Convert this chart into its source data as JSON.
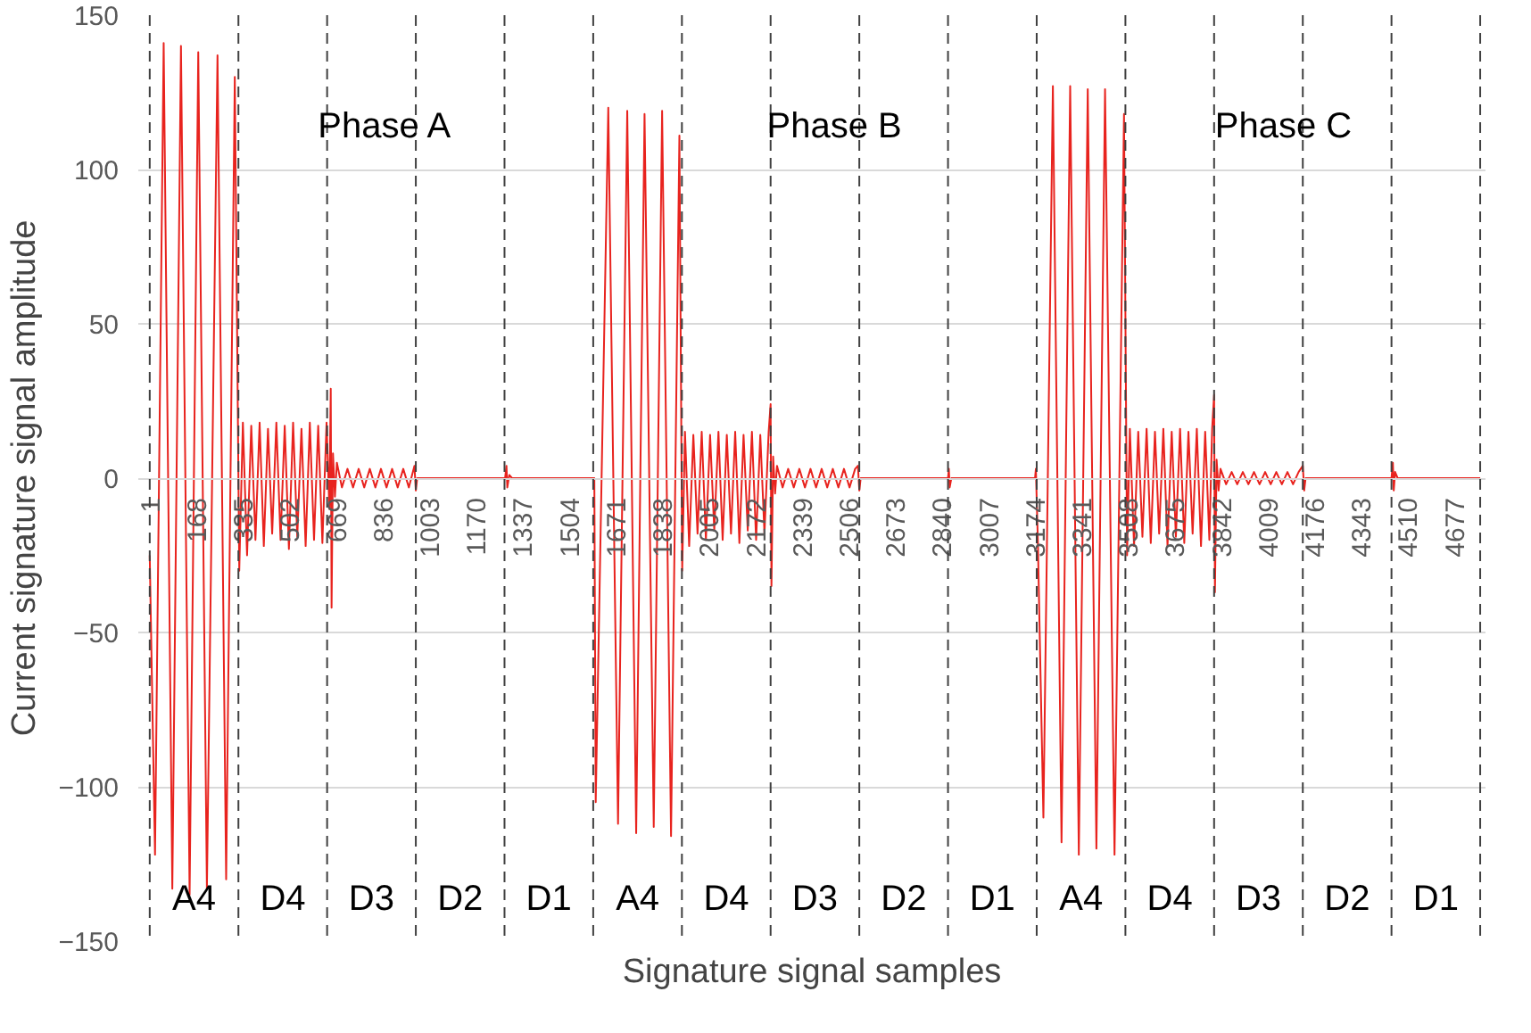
{
  "chart_data": {
    "type": "line",
    "xlabel": "Signature signal samples",
    "ylabel": "Current signature signal amplitude",
    "xlim": [
      -40,
      4790
    ],
    "ylim": [
      -150,
      150
    ],
    "xticks": [
      1,
      168,
      335,
      502,
      669,
      836,
      1003,
      1170,
      1337,
      1504,
      1671,
      1838,
      2005,
      2172,
      2339,
      2506,
      2673,
      2840,
      3007,
      3174,
      3341,
      3508,
      3675,
      3842,
      4009,
      4176,
      4343,
      4510,
      4677
    ],
    "yticks": [
      -150,
      -100,
      -50,
      0,
      50,
      100,
      150
    ],
    "grid": "y",
    "line_style": "solid",
    "series": [
      {
        "color": "#e8231e",
        "x": [
          1,
          20,
          51,
          82,
          113,
          144,
          175,
          206,
          244,
          275,
          306,
          322,
          335,
          350,
          365,
          380,
          395,
          410,
          425,
          440,
          455,
          470,
          485,
          500,
          515,
          530,
          545,
          560,
          575,
          590,
          605,
          620,
          635,
          645,
          650,
          653,
          658,
          665,
          672,
          690,
          710,
          730,
          750,
          770,
          790,
          810,
          830,
          850,
          870,
          890,
          910,
          930,
          950,
          955,
          960,
          1275,
          1280,
          1283,
          1290,
          1300,
          1595,
          1600,
          1645,
          1680,
          1713,
          1745,
          1775,
          1808,
          1838,
          1870,
          1900,
          1910,
          1920,
          1935,
          1950,
          1965,
          1980,
          1995,
          2010,
          2025,
          2040,
          2055,
          2070,
          2085,
          2100,
          2115,
          2130,
          2145,
          2160,
          2175,
          2190,
          2205,
          2220,
          2227,
          2230,
          2236,
          2243,
          2250,
          2270,
          2290,
          2310,
          2330,
          2350,
          2370,
          2390,
          2410,
          2430,
          2450,
          2470,
          2490,
          2510,
          2530,
          2540,
          2545,
          2550,
          2863,
          2866,
          2869,
          2875,
          3175,
          3178,
          3185,
          3205,
          3239,
          3270,
          3301,
          3332,
          3364,
          3395,
          3426,
          3460,
          3494,
          3505,
          3515,
          3530,
          3545,
          3560,
          3575,
          3590,
          3605,
          3620,
          3635,
          3650,
          3665,
          3680,
          3695,
          3710,
          3725,
          3740,
          3755,
          3770,
          3785,
          3800,
          3810,
          3817,
          3820,
          3826,
          3833,
          3840,
          3860,
          3880,
          3900,
          3920,
          3940,
          3960,
          3980,
          4000,
          4020,
          4040,
          4060,
          4080,
          4100,
          4120,
          4135,
          4140,
          4145,
          4453,
          4458,
          4461,
          4466,
          4475,
          4771
        ],
        "values": [
          -25,
          -122,
          141,
          -133,
          140,
          -135,
          138,
          -133,
          137,
          -130,
          130,
          -30,
          18,
          -25,
          17,
          -20,
          18,
          -22,
          16,
          -18,
          18,
          -20,
          17,
          -23,
          18,
          -19,
          16,
          -22,
          18,
          -20,
          17,
          -21,
          18,
          -10,
          29,
          -42,
          8,
          -6,
          5,
          -3,
          3,
          -3,
          3,
          -3,
          3,
          -3,
          3,
          -3,
          3,
          -3,
          3,
          -3,
          4,
          -4,
          0,
          0,
          4,
          -3,
          1,
          0,
          0,
          -105,
          120,
          -112,
          119,
          -115,
          118,
          -113,
          119,
          -116,
          111,
          -30,
          15,
          -22,
          14,
          -18,
          15,
          -20,
          14,
          -17,
          15,
          -20,
          14,
          -18,
          15,
          -21,
          14,
          -17,
          15,
          -20,
          14,
          -18,
          15,
          24,
          -35,
          7,
          -5,
          4,
          -3,
          3,
          -3,
          3,
          -3,
          3,
          -3,
          3,
          -3,
          3,
          -3,
          3,
          -3,
          3,
          4,
          -4,
          0,
          0,
          3,
          -3,
          0,
          0,
          3,
          -20,
          -110,
          127,
          -118,
          127,
          -122,
          126,
          -120,
          126,
          -122,
          118,
          -25,
          16,
          -22,
          15,
          -19,
          16,
          -21,
          15,
          -18,
          16,
          -22,
          15,
          -19,
          16,
          -21,
          15,
          -18,
          16,
          -22,
          15,
          -20,
          16,
          27,
          -37,
          6,
          -4,
          3,
          -2,
          2,
          -2,
          2,
          -2,
          2,
          -2,
          2,
          -2,
          2,
          -2,
          2,
          -2,
          2,
          4,
          -4,
          0,
          0,
          5,
          -4,
          2,
          0,
          0
        ]
      }
    ],
    "ref_lines": [
      {
        "axis": "x",
        "value": 1,
        "label": "A4",
        "color": "#404040",
        "line_style": "dashed"
      },
      {
        "axis": "x",
        "value": 319,
        "label": "D4",
        "color": "#404040",
        "line_style": "dashed"
      },
      {
        "axis": "x",
        "value": 637,
        "label": "D3",
        "color": "#404040",
        "line_style": "dashed"
      },
      {
        "axis": "x",
        "value": 955,
        "label": "D2",
        "color": "#404040",
        "line_style": "dashed"
      },
      {
        "axis": "x",
        "value": 1273,
        "label": "D1",
        "color": "#404040",
        "line_style": "dashed"
      },
      {
        "axis": "x",
        "value": 1591,
        "label": "A4",
        "color": "#404040",
        "line_style": "dashed"
      },
      {
        "axis": "x",
        "value": 1909,
        "label": "D4",
        "color": "#404040",
        "line_style": "dashed"
      },
      {
        "axis": "x",
        "value": 2227,
        "label": "D3",
        "color": "#404040",
        "line_style": "dashed"
      },
      {
        "axis": "x",
        "value": 2545,
        "label": "D2",
        "color": "#404040",
        "line_style": "dashed"
      },
      {
        "axis": "x",
        "value": 2863,
        "label": "D1",
        "color": "#404040",
        "line_style": "dashed"
      },
      {
        "axis": "x",
        "value": 3181,
        "label": "A4",
        "color": "#404040",
        "line_style": "dashed"
      },
      {
        "axis": "x",
        "value": 3499,
        "label": "D4",
        "color": "#404040",
        "line_style": "dashed"
      },
      {
        "axis": "x",
        "value": 3817,
        "label": "D3",
        "color": "#404040",
        "line_style": "dashed"
      },
      {
        "axis": "x",
        "value": 4135,
        "label": "D2",
        "color": "#404040",
        "line_style": "dashed"
      },
      {
        "axis": "x",
        "value": 4453,
        "label": "D1",
        "color": "#404040",
        "line_style": "dashed"
      },
      {
        "axis": "x",
        "value": 4771,
        "color": "#404040",
        "line_style": "dashed"
      }
    ],
    "annotations": [
      "Phase A",
      "Phase B",
      "Phase C"
    ]
  }
}
